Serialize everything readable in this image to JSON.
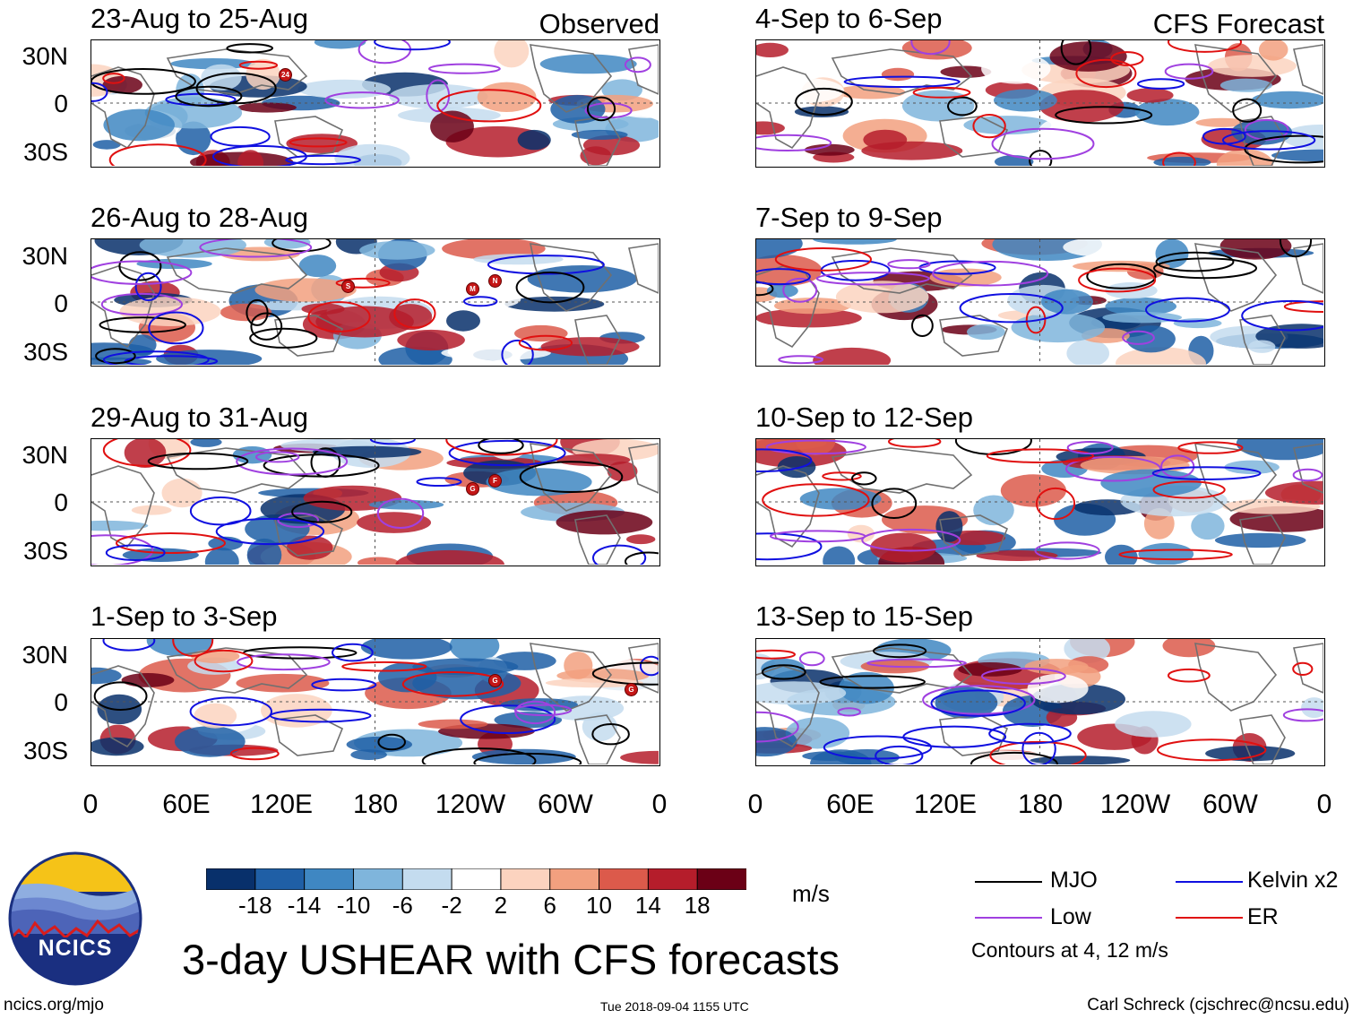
{
  "panels_left": [
    {
      "title": "23-Aug to 25-Aug",
      "tag": "Observed"
    },
    {
      "title": "26-Aug to 28-Aug",
      "tag": ""
    },
    {
      "title": "29-Aug to 31-Aug",
      "tag": ""
    },
    {
      "title": "1-Sep to 3-Sep",
      "tag": ""
    }
  ],
  "panels_right": [
    {
      "title": "4-Sep to 6-Sep",
      "tag": "CFS Forecast"
    },
    {
      "title": "7-Sep to 9-Sep",
      "tag": ""
    },
    {
      "title": "10-Sep to 12-Sep",
      "tag": ""
    },
    {
      "title": "13-Sep to 15-Sep",
      "tag": ""
    }
  ],
  "lat_labels": [
    "30N",
    "0",
    "30S"
  ],
  "lon_labels": [
    "0",
    "60E",
    "120E",
    "180",
    "120W",
    "60W",
    "0"
  ],
  "colorbar": {
    "labels": [
      "-18",
      "-14",
      "-10",
      "-6",
      "-2",
      "2",
      "6",
      "10",
      "14",
      "18"
    ],
    "colors": [
      "#08306b",
      "#1f5fa6",
      "#3f87c2",
      "#7fb5dc",
      "#c4dcef",
      "#ffffff",
      "#fcd3bf",
      "#f2a07f",
      "#dc5a4b",
      "#b51d2b",
      "#6b0016"
    ],
    "units": "m/s"
  },
  "legend": {
    "mjo": "MJO",
    "mjo_color": "#000000",
    "kelvin": "Kelvin x2",
    "kelvin_color": "#1010e0",
    "low": "Low",
    "low_color": "#a040e0",
    "er": "ER",
    "er_color": "#e01010",
    "contours_note": "Contours at 4, 12 m/s"
  },
  "logo": {
    "text": "NCICS"
  },
  "title": "3-day USHEAR with CFS forecasts",
  "footer": {
    "url": "ncics.org/mjo",
    "timestamp": "Tue 2018-09-04 1155 UTC",
    "author": "Carl Schreck (cjschrec@ncsu.edu)"
  },
  "storm_markers": {
    "p0": [
      "24"
    ],
    "p1": [
      "S",
      "M",
      "N"
    ],
    "p2": [
      "G",
      "F"
    ],
    "p3": [
      "G",
      "G"
    ]
  }
}
